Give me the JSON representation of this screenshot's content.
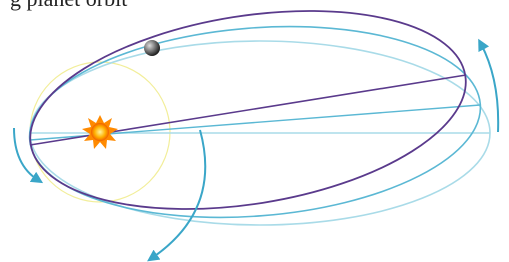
{
  "header": {
    "caption": "g planet orbit"
  }
}
